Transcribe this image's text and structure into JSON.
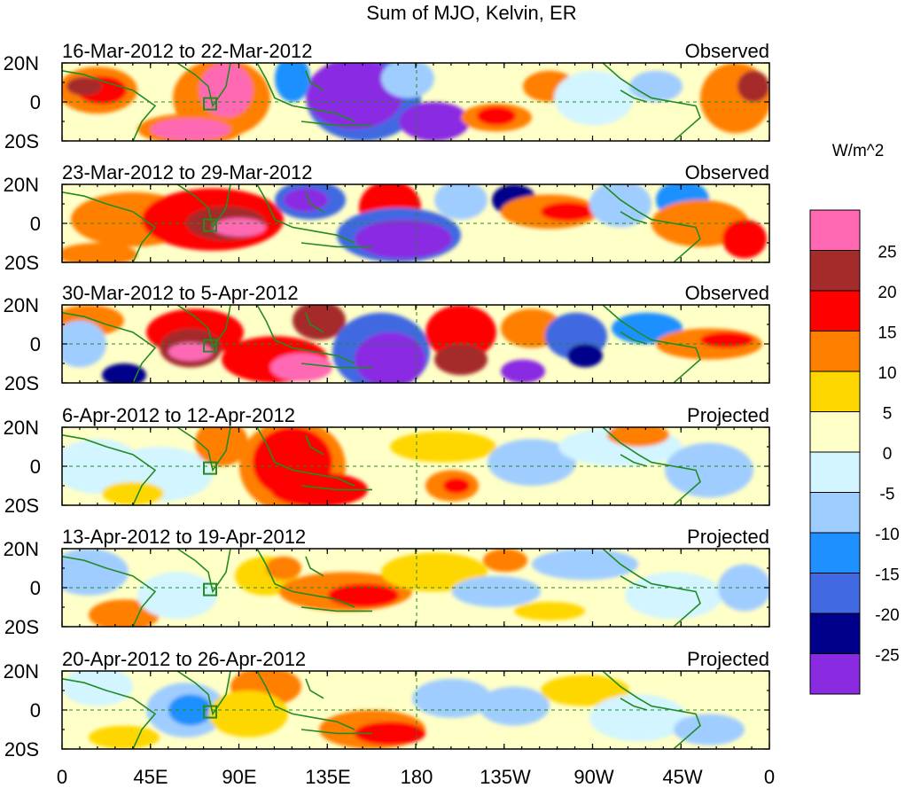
{
  "title": "Sum of MJO, Kelvin, ER",
  "panels": [
    {
      "period": "16-Mar-2012 to 22-Mar-2012",
      "status": "Observed"
    },
    {
      "period": "23-Mar-2012 to 29-Mar-2012",
      "status": "Observed"
    },
    {
      "period": "30-Mar-2012 to 5-Apr-2012",
      "status": "Observed"
    },
    {
      "period": "6-Apr-2012 to 12-Apr-2012",
      "status": "Projected"
    },
    {
      "period": "13-Apr-2012 to 19-Apr-2012",
      "status": "Projected"
    },
    {
      "period": "20-Apr-2012 to 26-Apr-2012",
      "status": "Projected"
    }
  ],
  "lat_labels": [
    "20N",
    "0",
    "20S"
  ],
  "lon_labels": [
    "0",
    "45E",
    "90E",
    "135E",
    "180",
    "135W",
    "90W",
    "45W",
    "0"
  ],
  "colorbar": {
    "units": "W/m^2",
    "tick_labels": [
      "25",
      "20",
      "15",
      "10",
      "5",
      "0",
      "-5",
      "-10",
      "-15",
      "-20",
      "-25"
    ],
    "colors": [
      "#ff69b4",
      "#a52a2a",
      "#ff0000",
      "#ff7f00",
      "#ffd700",
      "#ffffc8",
      "#d2f5ff",
      "#a0cdff",
      "#1e90ff",
      "#4169e1",
      "#00008b",
      "#8a2be2"
    ]
  },
  "map_colors": {
    "coast": "#228b22",
    "guide": "#228b22",
    "frame": "#000000"
  }
}
